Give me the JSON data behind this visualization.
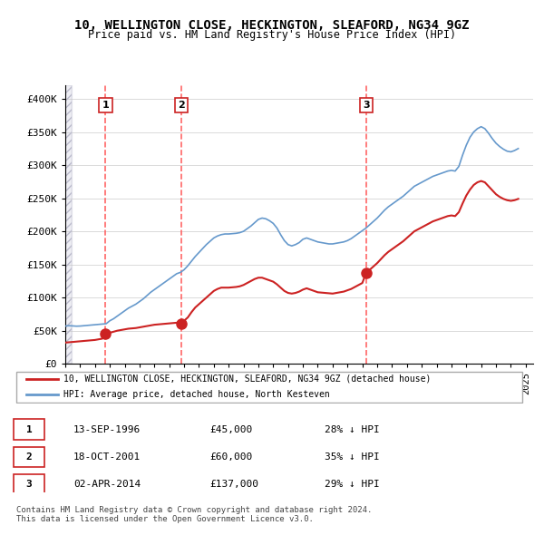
{
  "title_line1": "10, WELLINGTON CLOSE, HECKINGTON, SLEAFORD, NG34 9GZ",
  "title_line2": "Price paid vs. HM Land Registry's House Price Index (HPI)",
  "ylabel": "",
  "xlim_start": 1994.0,
  "xlim_end": 2025.5,
  "ylim": [
    0,
    420000
  ],
  "yticks": [
    0,
    50000,
    100000,
    150000,
    200000,
    250000,
    300000,
    350000,
    400000
  ],
  "ytick_labels": [
    "£0",
    "£50K",
    "£100K",
    "£150K",
    "£200K",
    "£250K",
    "£300K",
    "£350K",
    "£400K"
  ],
  "sale_dates": [
    1996.71,
    2001.8,
    2014.25
  ],
  "sale_prices": [
    45000,
    60000,
    137000
  ],
  "sale_labels": [
    "1",
    "2",
    "3"
  ],
  "hpi_color": "#6699cc",
  "price_color": "#cc2222",
  "dashed_color": "#ff6666",
  "hatch_color": "#ddddee",
  "legend_entries": [
    "10, WELLINGTON CLOSE, HECKINGTON, SLEAFORD, NG34 9GZ (detached house)",
    "HPI: Average price, detached house, North Kesteven"
  ],
  "table_data": [
    [
      "1",
      "13-SEP-1996",
      "£45,000",
      "28% ↓ HPI"
    ],
    [
      "2",
      "18-OCT-2001",
      "£60,000",
      "35% ↓ HPI"
    ],
    [
      "3",
      "02-APR-2014",
      "£137,000",
      "29% ↓ HPI"
    ]
  ],
  "footnote": "Contains HM Land Registry data © Crown copyright and database right 2024.\nThis data is licensed under the Open Government Licence v3.0.",
  "hpi_x": [
    1994.0,
    1994.25,
    1994.5,
    1994.75,
    1995.0,
    1995.25,
    1995.5,
    1995.75,
    1996.0,
    1996.25,
    1996.5,
    1996.75,
    1997.0,
    1997.25,
    1997.5,
    1997.75,
    1998.0,
    1998.25,
    1998.5,
    1998.75,
    1999.0,
    1999.25,
    1999.5,
    1999.75,
    2000.0,
    2000.25,
    2000.5,
    2000.75,
    2001.0,
    2001.25,
    2001.5,
    2001.75,
    2002.0,
    2002.25,
    2002.5,
    2002.75,
    2003.0,
    2003.25,
    2003.5,
    2003.75,
    2004.0,
    2004.25,
    2004.5,
    2004.75,
    2005.0,
    2005.25,
    2005.5,
    2005.75,
    2006.0,
    2006.25,
    2006.5,
    2006.75,
    2007.0,
    2007.25,
    2007.5,
    2007.75,
    2008.0,
    2008.25,
    2008.5,
    2008.75,
    2009.0,
    2009.25,
    2009.5,
    2009.75,
    2010.0,
    2010.25,
    2010.5,
    2010.75,
    2011.0,
    2011.25,
    2011.5,
    2011.75,
    2012.0,
    2012.25,
    2012.5,
    2012.75,
    2013.0,
    2013.25,
    2013.5,
    2013.75,
    2014.0,
    2014.25,
    2014.5,
    2014.75,
    2015.0,
    2015.25,
    2015.5,
    2015.75,
    2016.0,
    2016.25,
    2016.5,
    2016.75,
    2017.0,
    2017.25,
    2017.5,
    2017.75,
    2018.0,
    2018.25,
    2018.5,
    2018.75,
    2019.0,
    2019.25,
    2019.5,
    2019.75,
    2020.0,
    2020.25,
    2020.5,
    2020.75,
    2021.0,
    2021.25,
    2021.5,
    2021.75,
    2022.0,
    2022.25,
    2022.5,
    2022.75,
    2023.0,
    2023.25,
    2023.5,
    2023.75,
    2024.0,
    2024.25,
    2024.5
  ],
  "hpi_y": [
    57000,
    57500,
    57200,
    56800,
    57000,
    57500,
    58000,
    58500,
    59000,
    59500,
    60000,
    60500,
    65000,
    68000,
    72000,
    76000,
    80000,
    84000,
    87000,
    90000,
    94000,
    98000,
    103000,
    108000,
    112000,
    116000,
    120000,
    124000,
    128000,
    132000,
    136000,
    138000,
    142000,
    148000,
    155000,
    162000,
    168000,
    174000,
    180000,
    185000,
    190000,
    193000,
    195000,
    196000,
    196000,
    196500,
    197000,
    198000,
    200000,
    204000,
    208000,
    213000,
    218000,
    220000,
    219000,
    216000,
    212000,
    205000,
    195000,
    186000,
    180000,
    178000,
    180000,
    183000,
    188000,
    190000,
    188000,
    186000,
    184000,
    183000,
    182000,
    181000,
    181000,
    182000,
    183000,
    184000,
    186000,
    189000,
    193000,
    197000,
    201000,
    205000,
    210000,
    215000,
    220000,
    226000,
    232000,
    237000,
    241000,
    245000,
    249000,
    253000,
    258000,
    263000,
    268000,
    271000,
    274000,
    277000,
    280000,
    283000,
    285000,
    287000,
    289000,
    291000,
    292000,
    291000,
    298000,
    315000,
    330000,
    342000,
    350000,
    355000,
    358000,
    355000,
    348000,
    340000,
    333000,
    328000,
    324000,
    321000,
    320000,
    322000,
    325000
  ],
  "price_x": [
    1994.0,
    1994.25,
    1994.5,
    1994.75,
    1995.0,
    1995.25,
    1995.5,
    1995.75,
    1996.0,
    1996.25,
    1996.5,
    1996.71,
    1997.5,
    1997.75,
    1998.0,
    1998.25,
    1998.5,
    1998.75,
    1999.0,
    1999.25,
    1999.5,
    1999.75,
    2000.0,
    2000.25,
    2000.5,
    2000.75,
    2001.0,
    2001.25,
    2001.5,
    2001.8,
    2002.0,
    2002.25,
    2002.5,
    2002.75,
    2003.0,
    2003.25,
    2003.5,
    2003.75,
    2004.0,
    2004.25,
    2004.5,
    2004.75,
    2005.0,
    2005.25,
    2005.5,
    2005.75,
    2006.0,
    2006.25,
    2006.5,
    2006.75,
    2007.0,
    2007.25,
    2007.5,
    2007.75,
    2008.0,
    2008.25,
    2008.5,
    2008.75,
    2009.0,
    2009.25,
    2009.5,
    2009.75,
    2010.0,
    2010.25,
    2010.5,
    2010.75,
    2011.0,
    2011.25,
    2011.5,
    2011.75,
    2012.0,
    2012.25,
    2012.5,
    2012.75,
    2013.0,
    2013.25,
    2013.5,
    2013.75,
    2014.0,
    2014.25,
    2014.5,
    2014.75,
    2015.0,
    2015.25,
    2015.5,
    2015.75,
    2016.0,
    2016.25,
    2016.5,
    2016.75,
    2017.0,
    2017.25,
    2017.5,
    2017.75,
    2018.0,
    2018.25,
    2018.5,
    2018.75,
    2019.0,
    2019.25,
    2019.5,
    2019.75,
    2020.0,
    2020.25,
    2020.5,
    2020.75,
    2021.0,
    2021.25,
    2021.5,
    2021.75,
    2022.0,
    2022.25,
    2022.5,
    2022.75,
    2023.0,
    2023.25,
    2023.5,
    2023.75,
    2024.0,
    2024.25,
    2024.5
  ],
  "price_y": [
    32000,
    32500,
    33000,
    33500,
    34000,
    34500,
    35000,
    35500,
    36000,
    37000,
    38000,
    45000,
    50000,
    51000,
    52000,
    53000,
    53500,
    54000,
    55000,
    56000,
    57000,
    58000,
    59000,
    59500,
    60000,
    60500,
    61000,
    61500,
    62000,
    60000,
    65000,
    70000,
    78000,
    85000,
    90000,
    95000,
    100000,
    105000,
    110000,
    113000,
    115000,
    115000,
    115000,
    115500,
    116000,
    117000,
    119000,
    122000,
    125000,
    128000,
    130000,
    130000,
    128000,
    126000,
    124000,
    120000,
    115000,
    110000,
    107000,
    106000,
    107000,
    109000,
    112000,
    114000,
    112000,
    110000,
    108000,
    107500,
    107000,
    106500,
    106000,
    107000,
    108000,
    109000,
    111000,
    113000,
    116000,
    119000,
    122000,
    137000,
    142000,
    147000,
    152000,
    158000,
    164000,
    169000,
    173000,
    177000,
    181000,
    185000,
    190000,
    195000,
    200000,
    203000,
    206000,
    209000,
    212000,
    215000,
    217000,
    219000,
    221000,
    223000,
    224000,
    223000,
    229000,
    242000,
    254000,
    263000,
    270000,
    274000,
    276000,
    274000,
    268000,
    262000,
    256000,
    252000,
    249000,
    247000,
    246000,
    247000,
    249000
  ]
}
